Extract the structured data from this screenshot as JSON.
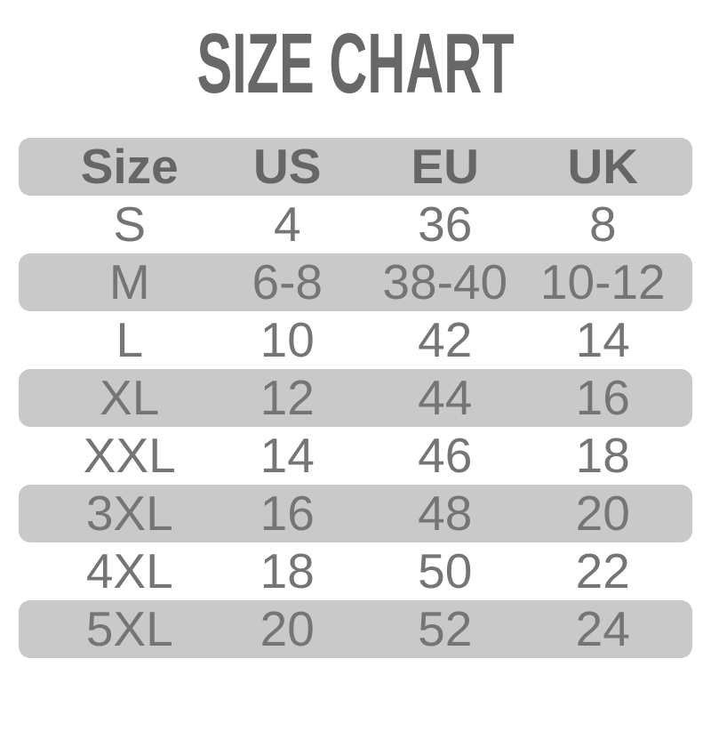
{
  "title": "SIZE CHART",
  "colors": {
    "background": "#ffffff",
    "title_text": "#686868",
    "header_text": "#666666",
    "cell_text": "#757575",
    "row_shade": "#c9c9c9"
  },
  "chart_data": {
    "type": "table",
    "title": "SIZE CHART",
    "columns": [
      "Size",
      "US",
      "EU",
      "UK"
    ],
    "rows": [
      [
        "S",
        "4",
        "36",
        "8"
      ],
      [
        "M",
        "6-8",
        "38-40",
        "10-12"
      ],
      [
        "L",
        "10",
        "42",
        "14"
      ],
      [
        "XL",
        "12",
        "44",
        "16"
      ],
      [
        "XXL",
        "14",
        "46",
        "18"
      ],
      [
        "3XL",
        "16",
        "48",
        "20"
      ],
      [
        "4XL",
        "18",
        "50",
        "22"
      ],
      [
        "5XL",
        "20",
        "52",
        "24"
      ]
    ],
    "layout": {
      "shaded_rows": "header, M, XL, 3XL, 5XL (alternating)",
      "alignment": "center"
    }
  }
}
